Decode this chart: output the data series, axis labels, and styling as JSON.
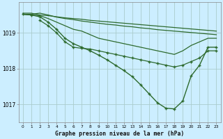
{
  "title": "Graphe pression niveau de la mer (hPa)",
  "bg_color": "#cceeff",
  "grid_color": "#aacccc",
  "line_color": "#2d6a2d",
  "xlim": [
    -0.5,
    23.5
  ],
  "ylim": [
    1016.5,
    1019.85
  ],
  "yticks": [
    1017,
    1018,
    1019
  ],
  "xticks": [
    0,
    1,
    2,
    3,
    4,
    5,
    6,
    7,
    8,
    9,
    10,
    11,
    12,
    13,
    14,
    15,
    16,
    17,
    18,
    19,
    20,
    21,
    22,
    23
  ],
  "series": [
    {
      "x": [
        0,
        1,
        2,
        3,
        4,
        5,
        6,
        7,
        8,
        9,
        10,
        11,
        12,
        13,
        14,
        15,
        16,
        17,
        18,
        19,
        20,
        21,
        22,
        23
      ],
      "y": [
        1019.55,
        1019.55,
        1019.5,
        1019.48,
        1019.45,
        1019.42,
        1019.4,
        1019.38,
        1019.35,
        1019.33,
        1019.31,
        1019.29,
        1019.27,
        1019.25,
        1019.23,
        1019.21,
        1019.19,
        1019.17,
        1019.15,
        1019.13,
        1019.11,
        1019.09,
        1019.07,
        1019.05
      ],
      "has_markers": false,
      "lw": 0.9
    },
    {
      "x": [
        0,
        1,
        2,
        3,
        4,
        5,
        6,
        7,
        8,
        9,
        10,
        11,
        12,
        13,
        14,
        15,
        16,
        17,
        18,
        19,
        20,
        21,
        22,
        23
      ],
      "y": [
        1019.52,
        1019.52,
        1019.55,
        1019.5,
        1019.44,
        1019.4,
        1019.37,
        1019.33,
        1019.3,
        1019.27,
        1019.24,
        1019.22,
        1019.19,
        1019.17,
        1019.14,
        1019.12,
        1019.09,
        1019.07,
        1019.05,
        1019.03,
        1019.01,
        1018.99,
        1018.97,
        1018.95
      ],
      "has_markers": false,
      "lw": 0.9
    },
    {
      "x": [
        0,
        1,
        2,
        3,
        4,
        5,
        6,
        7,
        8,
        9,
        10,
        11,
        12,
        13,
        14,
        15,
        16,
        17,
        18,
        19,
        20,
        21,
        22,
        23
      ],
      "y": [
        1019.52,
        1019.5,
        1019.48,
        1019.4,
        1019.3,
        1019.2,
        1019.1,
        1019.05,
        1018.95,
        1018.85,
        1018.8,
        1018.75,
        1018.7,
        1018.65,
        1018.6,
        1018.55,
        1018.5,
        1018.45,
        1018.4,
        1018.5,
        1018.65,
        1018.75,
        1018.85,
        1018.85
      ],
      "has_markers": false,
      "lw": 0.9
    },
    {
      "x": [
        2,
        3,
        4,
        5,
        6,
        7,
        8,
        9,
        10,
        11,
        12,
        13,
        14,
        15,
        16,
        17,
        18,
        19,
        20,
        21,
        22,
        23
      ],
      "y": [
        1019.35,
        1019.2,
        1019.0,
        1018.75,
        1018.6,
        1018.57,
        1018.55,
        1018.5,
        1018.45,
        1018.4,
        1018.35,
        1018.3,
        1018.25,
        1018.2,
        1018.15,
        1018.1,
        1018.05,
        1018.1,
        1018.2,
        1018.3,
        1018.5,
        1018.5
      ],
      "has_markers": true,
      "lw": 0.9
    },
    {
      "x": [
        0,
        1,
        2,
        3,
        4,
        5,
        6,
        7,
        8,
        9,
        10,
        11,
        12,
        13,
        14,
        15,
        16,
        17,
        18,
        19,
        20,
        21,
        22,
        23
      ],
      "y": [
        1019.52,
        1019.5,
        1019.45,
        1019.3,
        1019.1,
        1018.85,
        1018.7,
        1018.6,
        1018.5,
        1018.38,
        1018.25,
        1018.1,
        1017.95,
        1017.78,
        1017.55,
        1017.3,
        1017.05,
        1016.9,
        1016.88,
        1017.1,
        1017.8,
        1018.1,
        1018.6,
        1018.6
      ],
      "has_markers": true,
      "lw": 1.0
    }
  ]
}
